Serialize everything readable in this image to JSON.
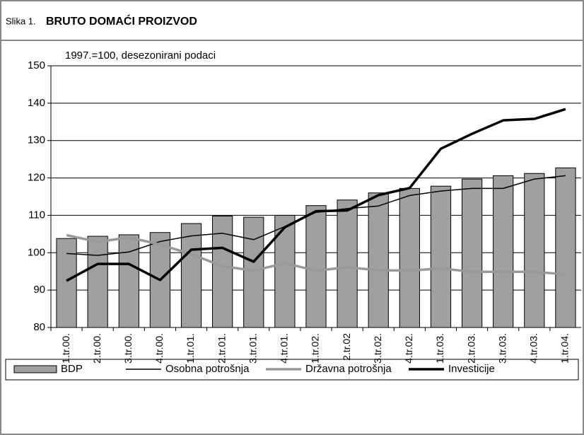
{
  "chart_data": {
    "type": "bar_line",
    "figure_label": "Slika 1.",
    "title": "BRUTO DOMAĆI PROIZVOD",
    "subtitle": "1997.=100, desezonirani podaci",
    "categories": [
      "1.tr.00.",
      "2.tr.00.",
      "3.tr.00.",
      "4.tr.00.",
      "1.tr.01.",
      "2.tr.01.",
      "3.tr.01.",
      "4.tr.01.",
      "1.tr.02.",
      "2.tr.02",
      "3.tr.02.",
      "4.tr.02.",
      "1.tr.03.",
      "2.tr.03.",
      "3.tr.03.",
      "4.tr.03.",
      "1.tr.04."
    ],
    "series": [
      {
        "name": "BDP",
        "type": "bar",
        "color": "#a0a0a0",
        "values": [
          103.8,
          104.4,
          104.8,
          105.4,
          107.8,
          109.8,
          109.5,
          110,
          112.6,
          114.1,
          116,
          117.2,
          117.8,
          119.7,
          120.6,
          121.2,
          122.7
        ]
      },
      {
        "name": "Osobna potrošnja",
        "type": "line",
        "color": "#000000",
        "width": 1.5,
        "values": [
          99.8,
          99.3,
          100.2,
          103,
          104.5,
          105.2,
          103.5,
          107,
          110.8,
          111.8,
          112.5,
          115.3,
          116.5,
          117.2,
          117.2,
          119.7,
          120.6
        ]
      },
      {
        "name": "Državna potrošnja",
        "type": "line",
        "color": "#999999",
        "width": 3.5,
        "values": [
          104.7,
          102.9,
          104.1,
          102.2,
          99.6,
          96.4,
          95.2,
          97.2,
          95.2,
          96.1,
          95.3,
          95.2,
          95.8,
          94.9,
          94.9,
          94.9,
          94.2
        ]
      },
      {
        "name": "Investicije",
        "type": "line",
        "color": "#000000",
        "width": 3.5,
        "values": [
          92.5,
          97,
          97,
          92.7,
          100.8,
          101.3,
          97.6,
          106.8,
          111.1,
          111.3,
          115.4,
          117.3,
          127.8,
          131.8,
          135.4,
          135.8,
          138.4
        ]
      }
    ],
    "ylim": [
      80,
      150
    ],
    "yticks": [
      80,
      90,
      100,
      110,
      120,
      130,
      140,
      150
    ],
    "grid": true
  }
}
